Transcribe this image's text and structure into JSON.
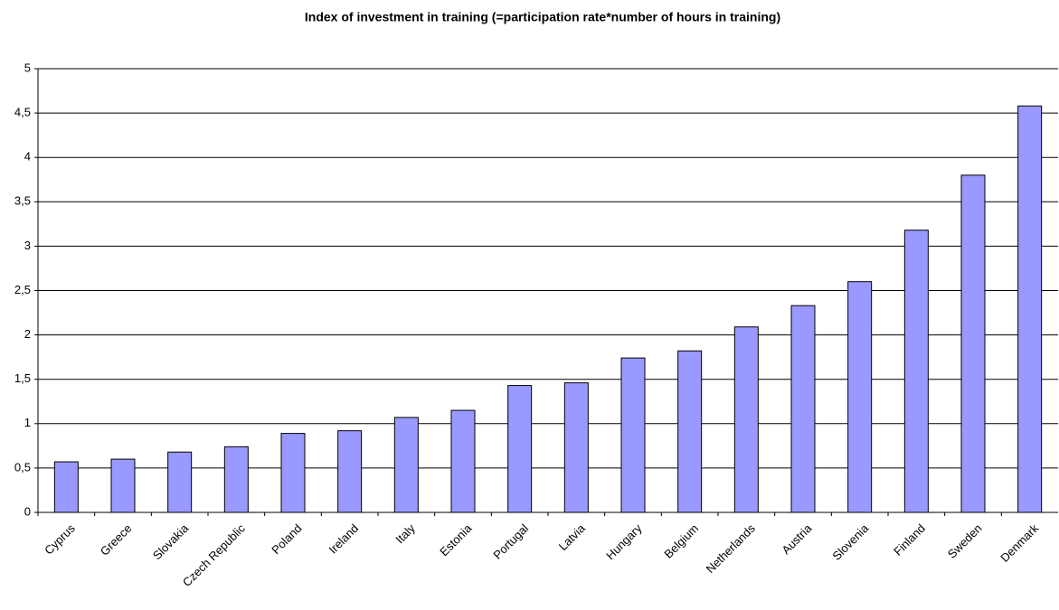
{
  "chart_data": {
    "type": "bar",
    "title": "Index of investment in training (=participation rate*number of hours in training)",
    "categories": [
      "Cyprus",
      "Greece",
      "Slovakia",
      "Czech Republic",
      "Poland",
      "Ireland",
      "Italy",
      "Estonia",
      "Portugal",
      "Latvia",
      "Hungary",
      "Belgium",
      "Netherlands",
      "Austria",
      "Slovenia",
      "Finland",
      "Sweden",
      "Denmark"
    ],
    "values": [
      0.57,
      0.6,
      0.68,
      0.74,
      0.89,
      0.92,
      1.07,
      1.15,
      1.43,
      1.46,
      1.74,
      1.82,
      2.09,
      2.33,
      2.6,
      3.18,
      3.8,
      4.58
    ],
    "color": "#9999ff",
    "ylim": [
      0,
      5
    ],
    "yticks": [
      0,
      {
        "value": 0.5,
        "label": "0,5"
      },
      1,
      {
        "value": 1.5,
        "label": "1,5"
      },
      2,
      {
        "value": 2.5,
        "label": "2,5"
      },
      3,
      {
        "value": 3.5,
        "label": "3,5"
      },
      4,
      {
        "value": 4.5,
        "label": "4,5"
      },
      5
    ],
    "grid": true
  }
}
